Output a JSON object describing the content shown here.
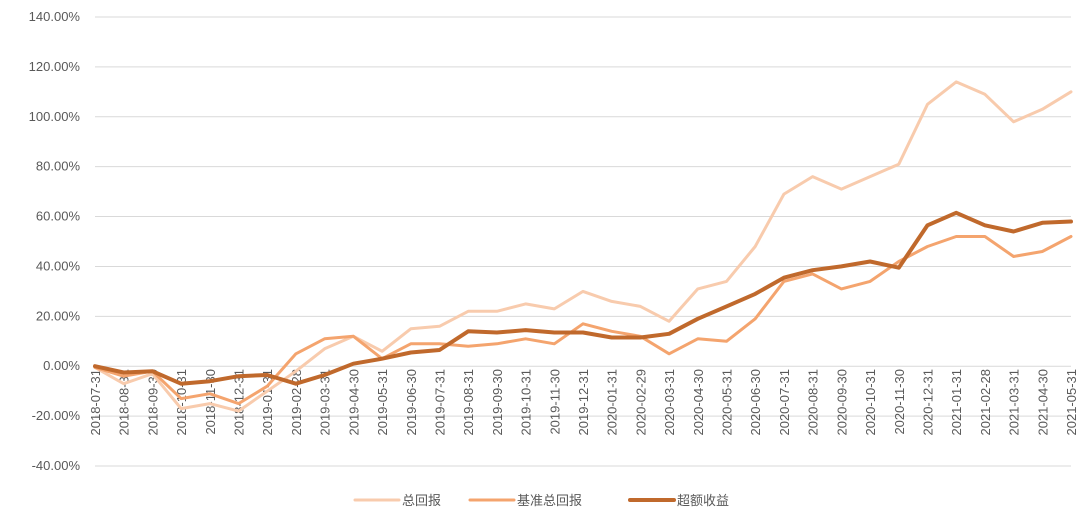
{
  "chart_data": {
    "type": "line",
    "title": "",
    "xlabel": "",
    "ylabel": "",
    "ylim": [
      -0.4,
      1.4
    ],
    "yticks": [
      -0.4,
      -0.2,
      0.0,
      0.2,
      0.4,
      0.6,
      0.8,
      1.0,
      1.2,
      1.4
    ],
    "ytick_labels": [
      "-40.00%",
      "-20.00%",
      "0.00%",
      "20.00%",
      "40.00%",
      "60.00%",
      "80.00%",
      "100.00%",
      "120.00%",
      "140.00%"
    ],
    "grid": true,
    "legend_position": "bottom",
    "categories": [
      "2018-07-31",
      "2018-08-31",
      "2018-09-30",
      "2018-10-31",
      "2018-11-30",
      "2018-12-31",
      "2019-01-31",
      "2019-02-28",
      "2019-03-31",
      "2019-04-30",
      "2019-05-31",
      "2019-06-30",
      "2019-07-31",
      "2019-08-31",
      "2019-09-30",
      "2019-10-31",
      "2019-11-30",
      "2019-12-31",
      "2020-01-31",
      "2020-02-29",
      "2020-03-31",
      "2020-04-30",
      "2020-05-31",
      "2020-06-30",
      "2020-07-31",
      "2020-08-31",
      "2020-09-30",
      "2020-10-31",
      "2020-11-30",
      "2020-12-31",
      "2021-01-31",
      "2021-02-28",
      "2021-03-31",
      "2021-04-30",
      "2021-05-31"
    ],
    "series": [
      {
        "name": "总回报",
        "color": "#f8cbad",
        "values": [
          -0.005,
          -0.07,
          -0.03,
          -0.17,
          -0.15,
          -0.18,
          -0.1,
          -0.02,
          0.07,
          0.12,
          0.06,
          0.15,
          0.16,
          0.22,
          0.22,
          0.25,
          0.23,
          0.3,
          0.26,
          0.24,
          0.18,
          0.31,
          0.34,
          0.48,
          0.69,
          0.76,
          0.71,
          0.76,
          0.81,
          1.05,
          1.14,
          1.09,
          0.98,
          1.03,
          1.1
        ]
      },
      {
        "name": "基准总回报",
        "color": "#f4a46e",
        "values": [
          -0.005,
          -0.04,
          -0.02,
          -0.13,
          -0.11,
          -0.15,
          -0.08,
          0.05,
          0.11,
          0.12,
          0.03,
          0.09,
          0.09,
          0.08,
          0.09,
          0.11,
          0.09,
          0.17,
          0.14,
          0.12,
          0.05,
          0.11,
          0.1,
          0.19,
          0.34,
          0.37,
          0.31,
          0.34,
          0.42,
          0.48,
          0.52,
          0.52,
          0.44,
          0.46,
          0.52
        ]
      },
      {
        "name": "超额收益",
        "color": "#c0692c",
        "values": [
          0.0,
          -0.025,
          -0.02,
          -0.07,
          -0.06,
          -0.04,
          -0.035,
          -0.07,
          -0.035,
          0.01,
          0.03,
          0.055,
          0.065,
          0.14,
          0.135,
          0.145,
          0.135,
          0.135,
          0.115,
          0.115,
          0.13,
          0.19,
          0.24,
          0.29,
          0.355,
          0.385,
          0.4,
          0.42,
          0.395,
          0.565,
          0.615,
          0.565,
          0.54,
          0.575,
          0.58
        ]
      }
    ]
  }
}
